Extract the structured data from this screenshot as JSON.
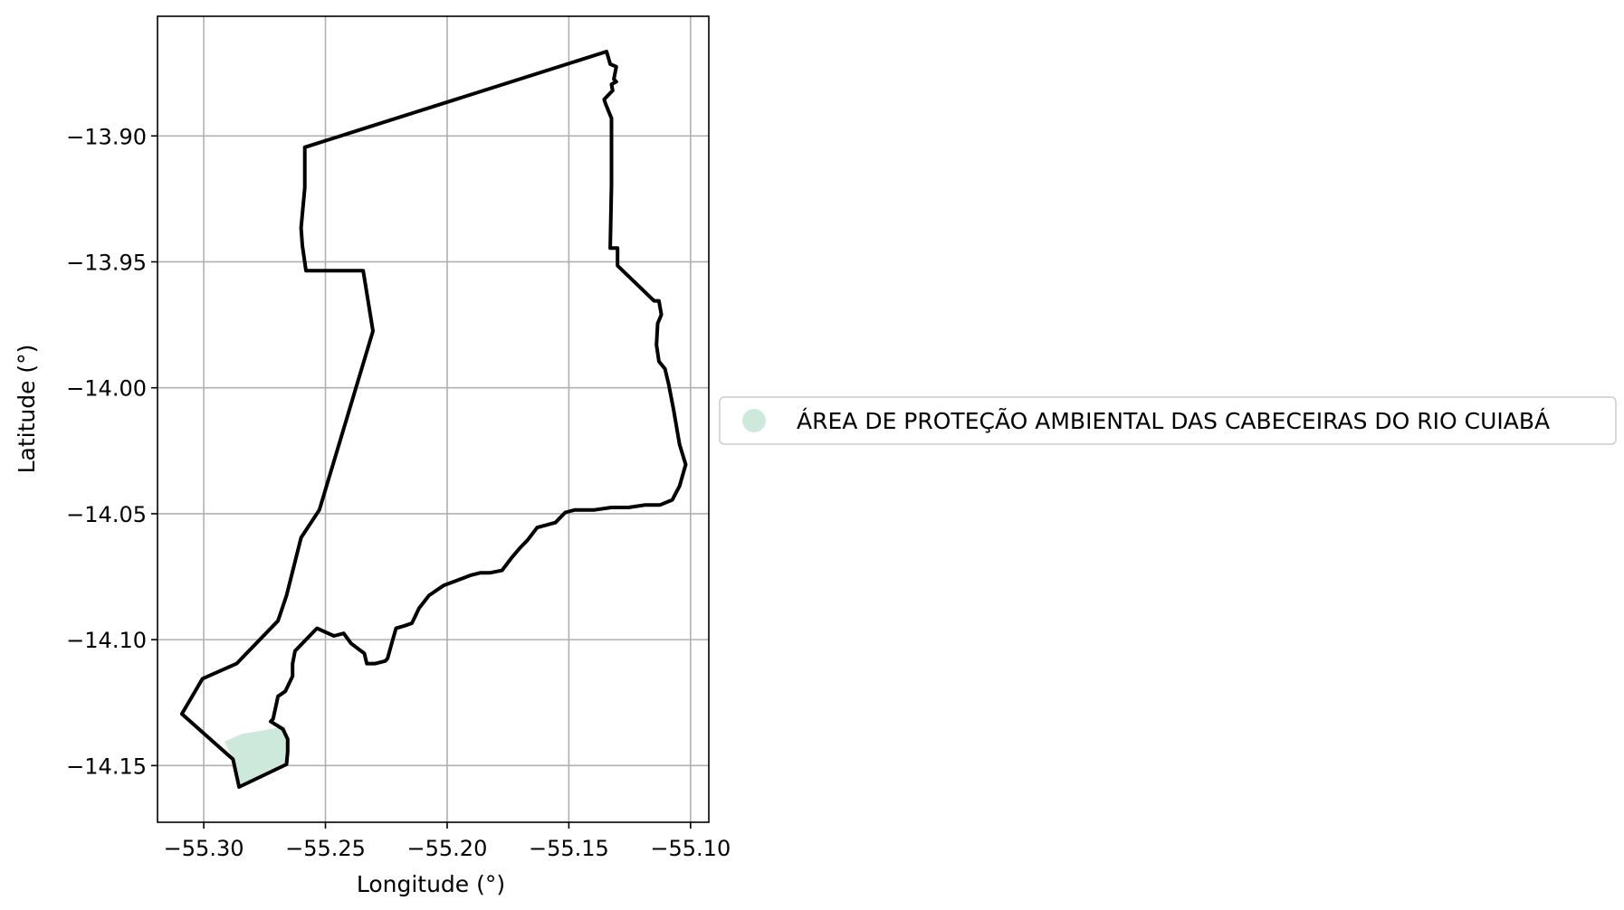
{
  "chart_data": {
    "type": "map",
    "xlabel": "Longitude (°)",
    "ylabel": "Latitude (°)",
    "xlim": [
      -55.319,
      -55.0925
    ],
    "ylim": [
      -14.1725,
      -13.8525
    ],
    "grid": true,
    "x_ticks": [
      {
        "value": -55.3,
        "label": "−55.30"
      },
      {
        "value": -55.25,
        "label": "−55.25"
      },
      {
        "value": -55.2,
        "label": "−55.20"
      },
      {
        "value": -55.15,
        "label": "−55.15"
      },
      {
        "value": -55.1,
        "label": "−55.10"
      }
    ],
    "y_ticks": [
      {
        "value": -13.9,
        "label": "−13.90"
      },
      {
        "value": -13.95,
        "label": "−13.95"
      },
      {
        "value": -14.0,
        "label": "−14.00"
      },
      {
        "value": -14.05,
        "label": "−14.05"
      },
      {
        "value": -14.1,
        "label": "−14.10"
      },
      {
        "value": -14.15,
        "label": "−14.15"
      }
    ],
    "legend": {
      "placement": "center-left-outside",
      "entries": [
        {
          "label": "ÁREA DE PROTEÇÃO AMBIENTAL DAS CABECEIRAS DO RIO CUIABÁ",
          "color": "#cce9dc",
          "marker": "circle"
        }
      ]
    },
    "boundary": {
      "stroke": "#000000",
      "coordinates": [
        [
          -55.1345,
          -13.8665
        ],
        [
          -55.133,
          -13.8715
        ],
        [
          -55.1305,
          -13.8725
        ],
        [
          -55.1315,
          -13.8775
        ],
        [
          -55.1305,
          -13.8785
        ],
        [
          -55.1325,
          -13.8795
        ],
        [
          -55.132,
          -13.882
        ],
        [
          -55.1335,
          -13.8835
        ],
        [
          -55.1355,
          -13.8855
        ],
        [
          -55.135,
          -13.887
        ],
        [
          -55.1325,
          -13.893
        ],
        [
          -55.1325,
          -13.9135
        ],
        [
          -55.1325,
          -13.9195
        ],
        [
          -55.133,
          -13.9445
        ],
        [
          -55.13,
          -13.9445
        ],
        [
          -55.13,
          -13.9515
        ],
        [
          -55.115,
          -13.9655
        ],
        [
          -55.113,
          -13.9655
        ],
        [
          -55.112,
          -13.971
        ],
        [
          -55.1135,
          -13.9745
        ],
        [
          -55.114,
          -13.983
        ],
        [
          -55.113,
          -13.9895
        ],
        [
          -55.1105,
          -13.9925
        ],
        [
          -55.109,
          -13.9985
        ],
        [
          -55.107,
          -14.0085
        ],
        [
          -55.1045,
          -14.0225
        ],
        [
          -55.102,
          -14.0305
        ],
        [
          -55.1045,
          -14.039
        ],
        [
          -55.1075,
          -14.0445
        ],
        [
          -55.1125,
          -14.0465
        ],
        [
          -55.1185,
          -14.0465
        ],
        [
          -55.1255,
          -14.0475
        ],
        [
          -55.1325,
          -14.0475
        ],
        [
          -55.1395,
          -14.0485
        ],
        [
          -55.1475,
          -14.0485
        ],
        [
          -55.1515,
          -14.0495
        ],
        [
          -55.1555,
          -14.0535
        ],
        [
          -55.163,
          -14.0555
        ],
        [
          -55.167,
          -14.0605
        ],
        [
          -55.17,
          -14.0635
        ],
        [
          -55.1735,
          -14.0675
        ],
        [
          -55.1775,
          -14.0725
        ],
        [
          -55.1825,
          -14.0735
        ],
        [
          -55.1865,
          -14.0735
        ],
        [
          -55.1905,
          -14.0745
        ],
        [
          -55.196,
          -14.0765
        ],
        [
          -55.2015,
          -14.0785
        ],
        [
          -55.2075,
          -14.0825
        ],
        [
          -55.2115,
          -14.0875
        ],
        [
          -55.2145,
          -14.0935
        ],
        [
          -55.2175,
          -14.0945
        ],
        [
          -55.221,
          -14.0955
        ],
        [
          -55.2225,
          -14.1005
        ],
        [
          -55.2245,
          -14.1075
        ],
        [
          -55.2255,
          -14.1085
        ],
        [
          -55.2295,
          -14.1095
        ],
        [
          -55.233,
          -14.1095
        ],
        [
          -55.234,
          -14.1055
        ],
        [
          -55.2395,
          -14.1015
        ],
        [
          -55.2425,
          -14.0975
        ],
        [
          -55.2465,
          -14.0985
        ],
        [
          -55.2535,
          -14.0955
        ],
        [
          -55.2565,
          -14.0985
        ],
        [
          -55.2625,
          -14.1045
        ],
        [
          -55.2635,
          -14.1095
        ],
        [
          -55.2635,
          -14.1145
        ],
        [
          -55.2665,
          -14.1205
        ],
        [
          -55.2695,
          -14.1225
        ],
        [
          -55.2715,
          -14.1315
        ],
        [
          -55.2725,
          -14.1325
        ],
        [
          -55.2675,
          -14.1355
        ],
        [
          -55.2655,
          -14.1395
        ],
        [
          -55.2655,
          -14.1445
        ],
        [
          -55.266,
          -14.1495
        ],
        [
          -55.2855,
          -14.1585
        ],
        [
          -55.288,
          -14.1475
        ],
        [
          -55.309,
          -14.1295
        ],
        [
          -55.3005,
          -14.1155
        ],
        [
          -55.2865,
          -14.1095
        ],
        [
          -55.2695,
          -14.0925
        ],
        [
          -55.266,
          -14.0825
        ],
        [
          -55.26,
          -14.0595
        ],
        [
          -55.2525,
          -14.0485
        ],
        [
          -55.2305,
          -13.9775
        ],
        [
          -55.2345,
          -13.9535
        ],
        [
          -55.258,
          -13.9535
        ],
        [
          -55.2595,
          -13.9435
        ],
        [
          -55.26,
          -13.9365
        ],
        [
          -55.2585,
          -13.9205
        ],
        [
          -55.2585,
          -13.9045
        ],
        [
          -55.1345,
          -13.8665
        ]
      ]
    },
    "filled_area": {
      "color": "#cce9dc",
      "coordinates": [
        [
          -55.2915,
          -14.1405
        ],
        [
          -55.2845,
          -14.1375
        ],
        [
          -55.2665,
          -14.1345
        ],
        [
          -55.2655,
          -14.1395
        ],
        [
          -55.2655,
          -14.1445
        ],
        [
          -55.266,
          -14.1495
        ],
        [
          -55.2855,
          -14.1585
        ],
        [
          -55.288,
          -14.1475
        ],
        [
          -55.2915,
          -14.1405
        ]
      ]
    }
  }
}
